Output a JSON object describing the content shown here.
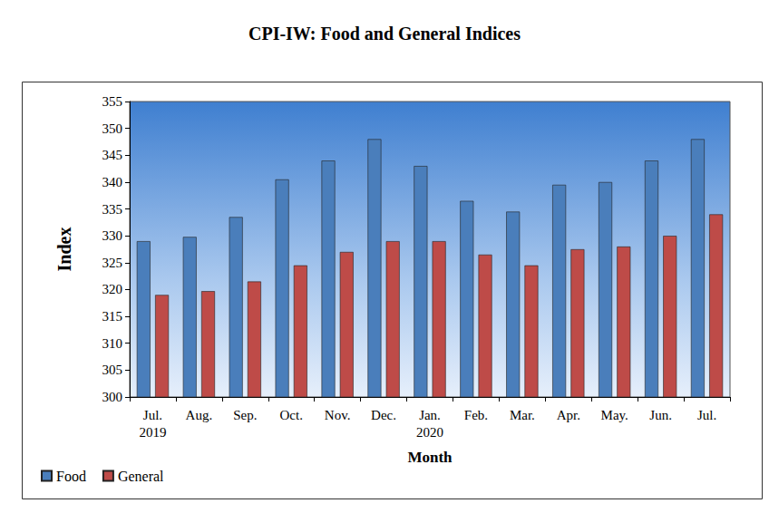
{
  "chart_data": {
    "type": "bar",
    "title": "CPI-IW: Food and General Indices",
    "x_label": "Month",
    "y_label": "Index",
    "categories": [
      "Jul.\n2019",
      "Aug.",
      "Sep.",
      "Oct.",
      "Nov.",
      "Dec.",
      "Jan.\n2020",
      "Feb.",
      "Mar.",
      "Apr.",
      "May.",
      "Jun.",
      "Jul."
    ],
    "series": [
      {
        "name": "Food",
        "color": "#4a7ebb",
        "values": [
          329,
          329.8,
          333.5,
          340.5,
          344,
          348,
          343,
          336.5,
          334.5,
          339.5,
          340,
          344,
          348
        ]
      },
      {
        "name": "General",
        "color": "#be4b48",
        "values": [
          319,
          319.7,
          321.5,
          324.5,
          327,
          329,
          329,
          326.5,
          324.5,
          327.5,
          328,
          330,
          334
        ]
      }
    ],
    "ylim": [
      300,
      355
    ],
    "yticks": [
      300,
      305,
      310,
      315,
      320,
      325,
      330,
      335,
      340,
      345,
      350,
      355
    ],
    "grid": false,
    "legend": "bottom-left"
  }
}
